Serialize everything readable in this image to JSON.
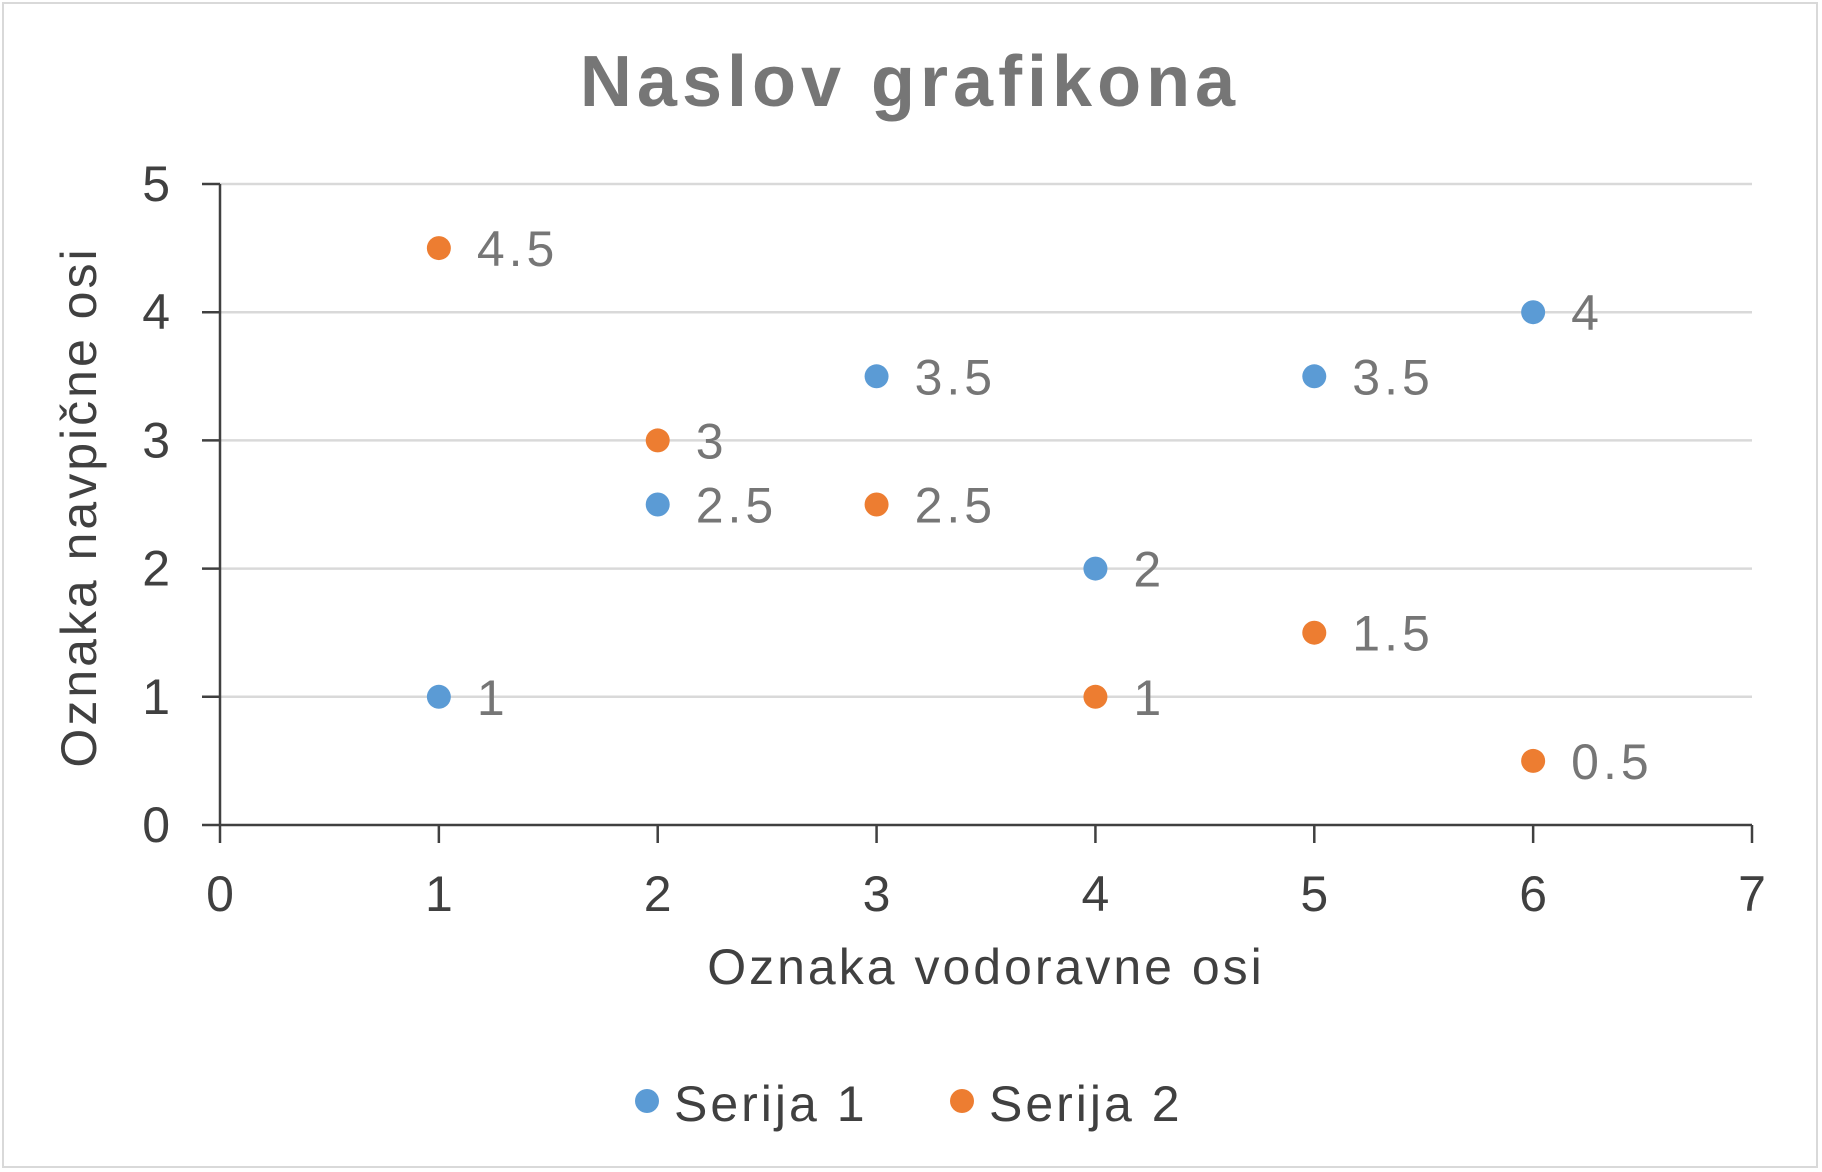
{
  "chart_data": {
    "type": "scatter",
    "title": "Naslov grafikona",
    "xlabel": "Oznaka vodoravne osi",
    "ylabel": "Oznaka navpične osi",
    "xlim": [
      0,
      7
    ],
    "ylim": [
      0,
      5
    ],
    "x_ticks": [
      0,
      1,
      2,
      3,
      4,
      5,
      6,
      7
    ],
    "y_ticks": [
      0,
      1,
      2,
      3,
      4,
      5
    ],
    "grid": "horizontal",
    "legend_position": "bottom",
    "data_labels": true,
    "series": [
      {
        "name": "Serija 1",
        "color": "#5b9bd5",
        "points": [
          {
            "x": 1,
            "y": 1,
            "label": "1"
          },
          {
            "x": 2,
            "y": 2.5,
            "label": "2.5"
          },
          {
            "x": 3,
            "y": 3.5,
            "label": "3.5"
          },
          {
            "x": 4,
            "y": 2,
            "label": "2"
          },
          {
            "x": 5,
            "y": 3.5,
            "label": "3.5"
          },
          {
            "x": 6,
            "y": 4,
            "label": "4"
          }
        ]
      },
      {
        "name": "Serija 2",
        "color": "#ed7d31",
        "points": [
          {
            "x": 1,
            "y": 4.5,
            "label": "4.5"
          },
          {
            "x": 2,
            "y": 3,
            "label": "3"
          },
          {
            "x": 3,
            "y": 2.5,
            "label": "2.5"
          },
          {
            "x": 4,
            "y": 1,
            "label": "1"
          },
          {
            "x": 5,
            "y": 1.5,
            "label": "1.5"
          },
          {
            "x": 6,
            "y": 0.5,
            "label": "0.5"
          }
        ]
      }
    ]
  }
}
